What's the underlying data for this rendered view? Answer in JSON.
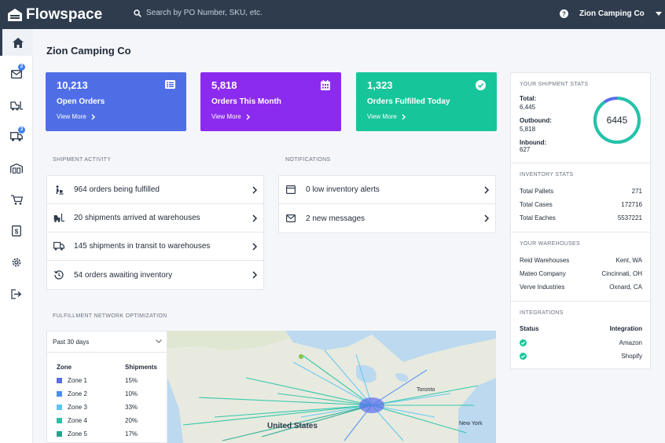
{
  "app": {
    "name": "Flowspace"
  },
  "search": {
    "placeholder": "Search by PO Number, SKU, etc."
  },
  "account": {
    "name": "Zion Camping Co"
  },
  "sidebar": {
    "badges": {
      "messages": "2",
      "shipments": "3"
    }
  },
  "page": {
    "title": "Zion Camping Co"
  },
  "cards": [
    {
      "value": "10,213",
      "label": "Open Orders",
      "link": "View More",
      "color": "#4f6ee6"
    },
    {
      "value": "5,818",
      "label": "Orders This Month",
      "link": "View More",
      "color": "#8b2bf0"
    },
    {
      "value": "1,323",
      "label": "Orders Fulfilled Today",
      "link": "View More",
      "color": "#16c59a"
    }
  ],
  "shipment_activity": {
    "title": "SHIPMENT ACTIVITY",
    "rows": [
      "964 orders being fulfilled",
      "20 shipments arrived at warehouses",
      "145 shipments in transit to warehouses",
      "54 orders awaiting inventory"
    ]
  },
  "notifications": {
    "title": "NOTIFICATIONS",
    "rows": [
      "0 low inventory alerts",
      "2 new messages"
    ]
  },
  "network": {
    "title": "FULFILLMENT NETWORK OPTIMIZATION",
    "period": "Past 30 days",
    "zone_header": "Zone",
    "shipments_header": "Shipments",
    "zones": [
      {
        "name": "Zone 1",
        "pct": "15%",
        "color": "#5b6cf0"
      },
      {
        "name": "Zone 2",
        "pct": "10%",
        "color": "#4c8ff3"
      },
      {
        "name": "Zone 3",
        "pct": "33%",
        "color": "#5bc6f5"
      },
      {
        "name": "Zone 4",
        "pct": "20%",
        "color": "#22c5a7"
      },
      {
        "name": "Zone 5",
        "pct": "17%",
        "color": "#1aa890"
      }
    ],
    "map_labels": {
      "country": "United States",
      "city1": "Toronto",
      "city2": "New York"
    }
  },
  "stats": {
    "title": "YOUR SHIPMENT STATS",
    "total_label": "Total:",
    "total": "6,445",
    "outbound_label": "Outbound:",
    "outbound": "5,818",
    "inbound_label": "Inbound:",
    "inbound": "627",
    "ring_value": "6445",
    "ring_fraction": 0.9027
  },
  "inventory": {
    "title": "INVENTORY STATS",
    "rows": [
      {
        "k": "Total Pallets",
        "v": "271"
      },
      {
        "k": "Total Cases",
        "v": "172716"
      },
      {
        "k": "Total Eaches",
        "v": "5537221"
      }
    ]
  },
  "warehouses": {
    "title": "YOUR WAREHOUSES",
    "rows": [
      {
        "k": "Reid Warehouses",
        "v": "Kent, WA"
      },
      {
        "k": "Mateo Company",
        "v": "Cincinnati, OH"
      },
      {
        "k": "Verve Industries",
        "v": "Oxnard, CA"
      }
    ]
  },
  "integrations": {
    "title": "INTEGRATIONS",
    "status_header": "Status",
    "integration_header": "Integration",
    "rows": [
      "Amazon",
      "Shopify"
    ]
  }
}
